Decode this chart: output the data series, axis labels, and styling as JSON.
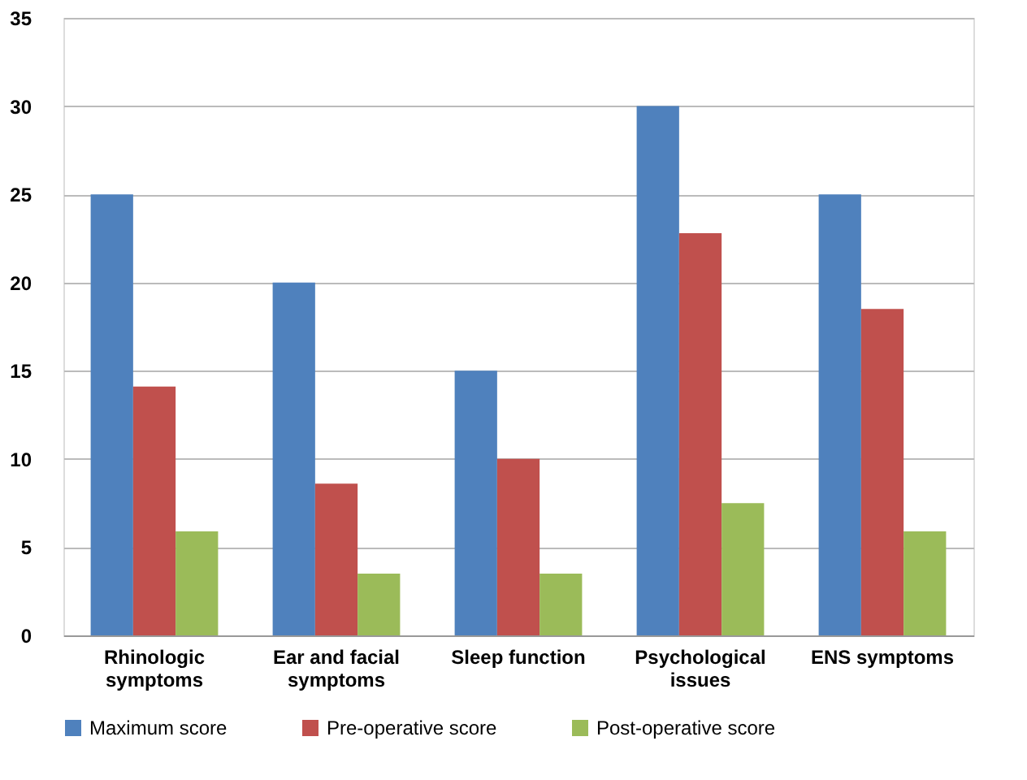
{
  "chart_data": {
    "type": "bar",
    "categories": [
      "Rhinologic symptoms",
      "Ear and facial symptoms",
      "Sleep function",
      "Psychological issues",
      "ENS symptoms"
    ],
    "series": [
      {
        "name": "Maximum score",
        "color": "#4f81bd",
        "values": [
          25,
          20,
          15,
          30,
          25
        ]
      },
      {
        "name": "Pre-operative score",
        "color": "#c0504d",
        "values": [
          14.1,
          8.6,
          10,
          22.8,
          18.5
        ]
      },
      {
        "name": "Post-operative score",
        "color": "#9bbb59",
        "values": [
          5.9,
          3.5,
          3.5,
          7.5,
          5.9
        ]
      }
    ],
    "ylim": [
      0,
      35
    ],
    "yticks": [
      0,
      5,
      10,
      15,
      20,
      25,
      30,
      35
    ],
    "grid": "y",
    "legend": "bottom"
  }
}
